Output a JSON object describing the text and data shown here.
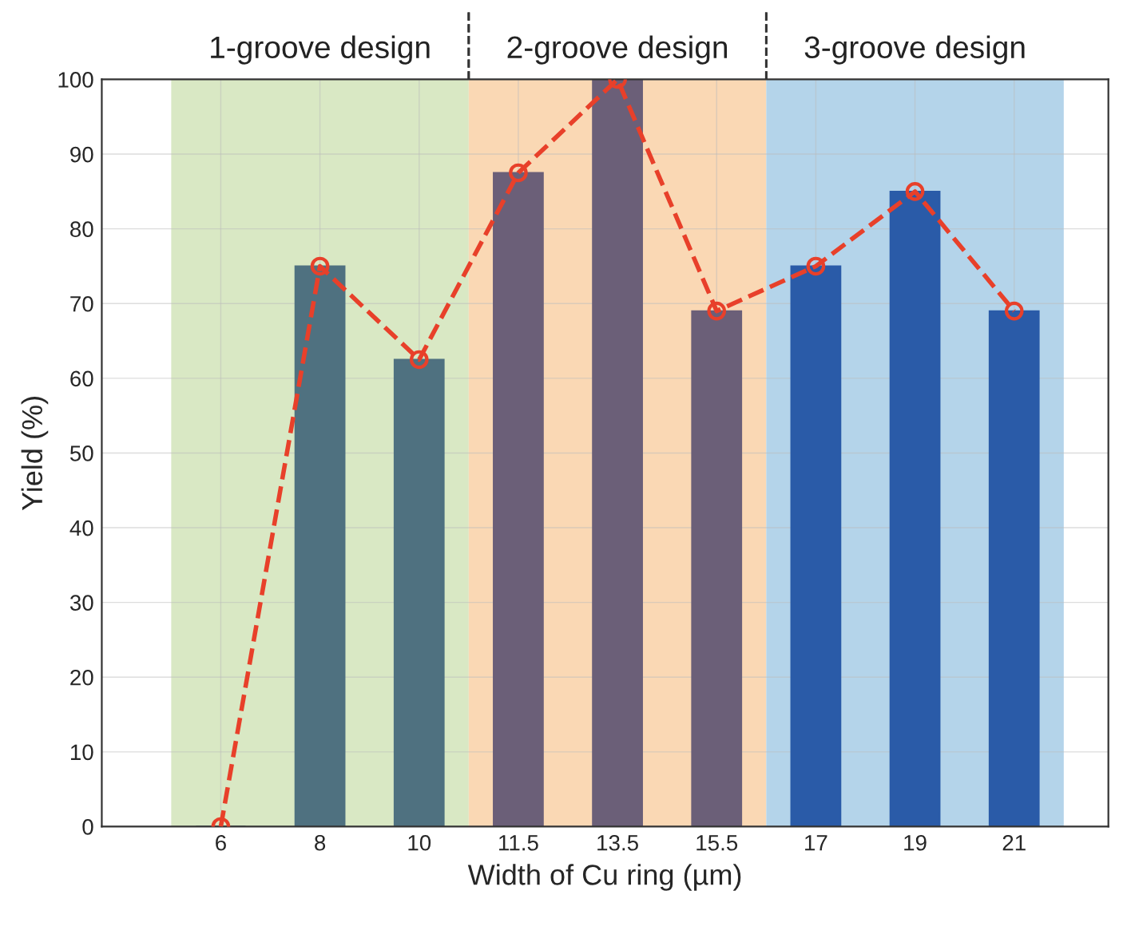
{
  "chart_data": {
    "type": "bar",
    "xlabel": "Width of Cu ring (µm)",
    "ylabel": "Yield (%)",
    "categories": [
      "6",
      "8",
      "10",
      "11.5",
      "13.5",
      "15.5",
      "17",
      "19",
      "21"
    ],
    "series": [
      {
        "colors": [
          "#4f7180",
          "#4f7180",
          "#4f7180",
          "#6b5f78",
          "#6b5f78",
          "#6b5f78",
          "#2a5ba8",
          "#2a5ba8",
          "#2a5ba8"
        ],
        "values": [
          0,
          75,
          62.5,
          87.5,
          100,
          69,
          75,
          85,
          69
        ]
      },
      {
        "type": "line",
        "color": "#e8402a",
        "marker": "circle",
        "line_style": "dashed",
        "values": [
          0,
          75,
          62.5,
          87.5,
          100,
          69,
          75,
          85,
          69
        ]
      }
    ],
    "bands": [
      {
        "axis": "x",
        "from": "6",
        "to": "10",
        "label": "1-groove design",
        "color": "#d9e8c4"
      },
      {
        "axis": "x",
        "from": "11.5",
        "to": "15.5",
        "label": "2-groove design",
        "color": "#fad8b4"
      },
      {
        "axis": "x",
        "from": "17",
        "to": "21",
        "label": "3-groove design",
        "color": "#b4d4ea"
      }
    ],
    "ylim": [
      0,
      100
    ],
    "yticks": [
      0,
      10,
      20,
      30,
      40,
      50,
      60,
      70,
      80,
      90,
      100
    ],
    "grid": true
  }
}
